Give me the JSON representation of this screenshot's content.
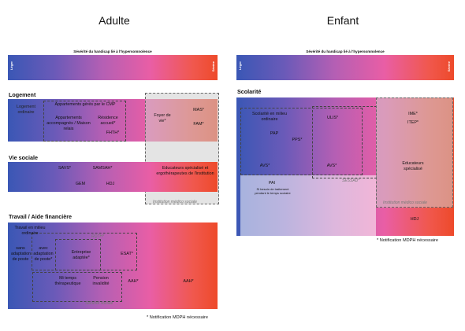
{
  "adult": {
    "title": "Adulte",
    "severity_label": "Sévérité du handicap lié à l'hypersomnolence",
    "left_end": "Léger",
    "right_end": "Sévère",
    "logement": {
      "heading": "Logement",
      "items": {
        "logement_ordinaire": "Logement ordinaire",
        "appart_cmp": "Appartements gérés par le CMP",
        "appart_accompagnes": "Appartements accompagnés / Maison relais",
        "residence_accueil": "Résidence accueil*",
        "foyer_de_vie": "Foyer de vie*",
        "fhth": "FHTH*",
        "mas": "MAS*",
        "fam": "FAM*"
      }
    },
    "vie_sociale": {
      "heading": "Vie sociale",
      "items": {
        "savs": "SAVS*",
        "samsah": "SAMSAH*",
        "gem": "GEM",
        "hdj": "HDJ",
        "educateurs": "Educateurs spécialisé et ergothérapeutes de l'institution"
      },
      "institution_label": "Institution médico sociale"
    },
    "travail": {
      "heading": "Travail / Aide financière",
      "items": {
        "travail_ordinaire": "Travail en milieu ordinaire",
        "sans_adaptation": "sans adaptation de poste",
        "avec_adaptation": "avec adaptation de poste*",
        "rqth": "RQTH*",
        "entreprise_adaptee": "Entreprise adaptée*",
        "esat": "ESAT*",
        "mi_temps": "Mi temps thérapeutique",
        "pension": "Pension invalidité",
        "aah1": "AAH*",
        "aah2": "AAH*",
        "securite_sociale": "Sécurité sociale"
      }
    },
    "footnote": "* Notification MDPH nécessaire"
  },
  "child": {
    "title": "Enfant",
    "severity_label": "Sévérité du handicap lié à l'hypersomnolence",
    "left_end": "Léger",
    "right_end": "Sévère",
    "scolarite": {
      "heading": "Scolarité",
      "items": {
        "milieu_ordinaire": "Scolarité en milieu ordinaire",
        "ulis": "ULIS*",
        "pap": "PAP",
        "pps": "PPS*",
        "avs1": "AVS*",
        "avs2": "AVS*",
        "ime": "IME*",
        "itep": "ITEP*",
        "educateurs": "Educateurs spécialisé",
        "pai": "PAI",
        "pai_detail": "Si besoin de traitement pendant le temps scolaire",
        "sessad": "SESSAD*",
        "institution_label": "Institution médico sociale",
        "hdj": "HDJ"
      }
    },
    "footnote": "* Notification MDPH nécessaire"
  }
}
